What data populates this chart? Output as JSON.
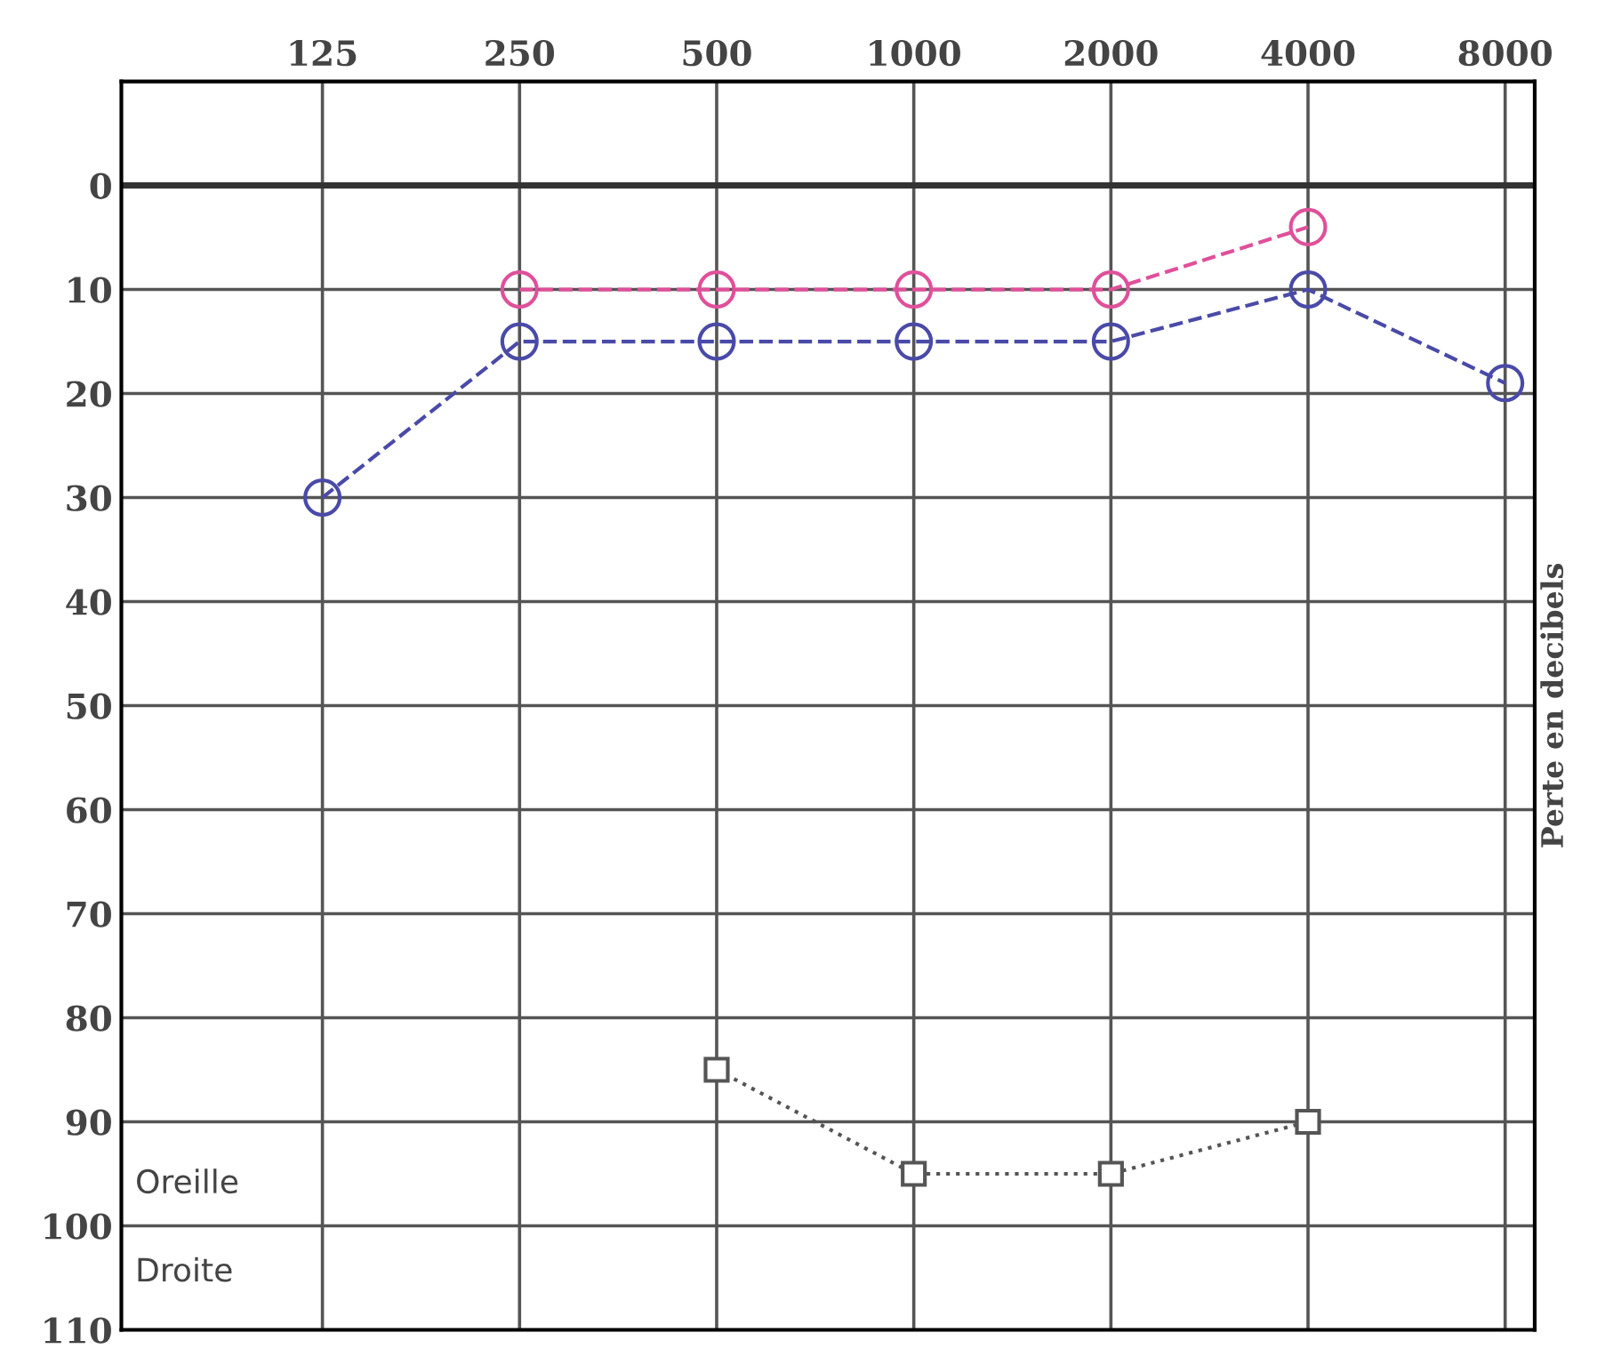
{
  "chart_data": {
    "type": "line",
    "ylabel": "Perte en decibels",
    "categories": [
      "125",
      "250",
      "500",
      "1000",
      "2000",
      "4000",
      "8000"
    ],
    "series": [
      {
        "color": "#e0509a",
        "values": [
          null,
          10,
          10,
          10,
          10,
          4,
          null
        ],
        "marker": "circle",
        "line_style": "dashed"
      },
      {
        "color": "#4a4aa8",
        "values": [
          30,
          15,
          15,
          15,
          15,
          10,
          19
        ],
        "marker": "circle",
        "line_style": "dashed"
      },
      {
        "color": "#555555",
        "values": [
          null,
          null,
          85,
          95,
          95,
          90,
          null
        ],
        "marker": "square",
        "line_style": "dotted"
      }
    ],
    "ylim": [
      110,
      -10
    ],
    "yticks": [
      0,
      10,
      20,
      30,
      40,
      50,
      60,
      70,
      80,
      90,
      100,
      110
    ],
    "ref_lines": [
      {
        "axis": "y",
        "value": 0,
        "color": "#333333"
      }
    ],
    "grid": true,
    "legend": false,
    "annotations": [
      "Oreille",
      "Droite"
    ]
  }
}
